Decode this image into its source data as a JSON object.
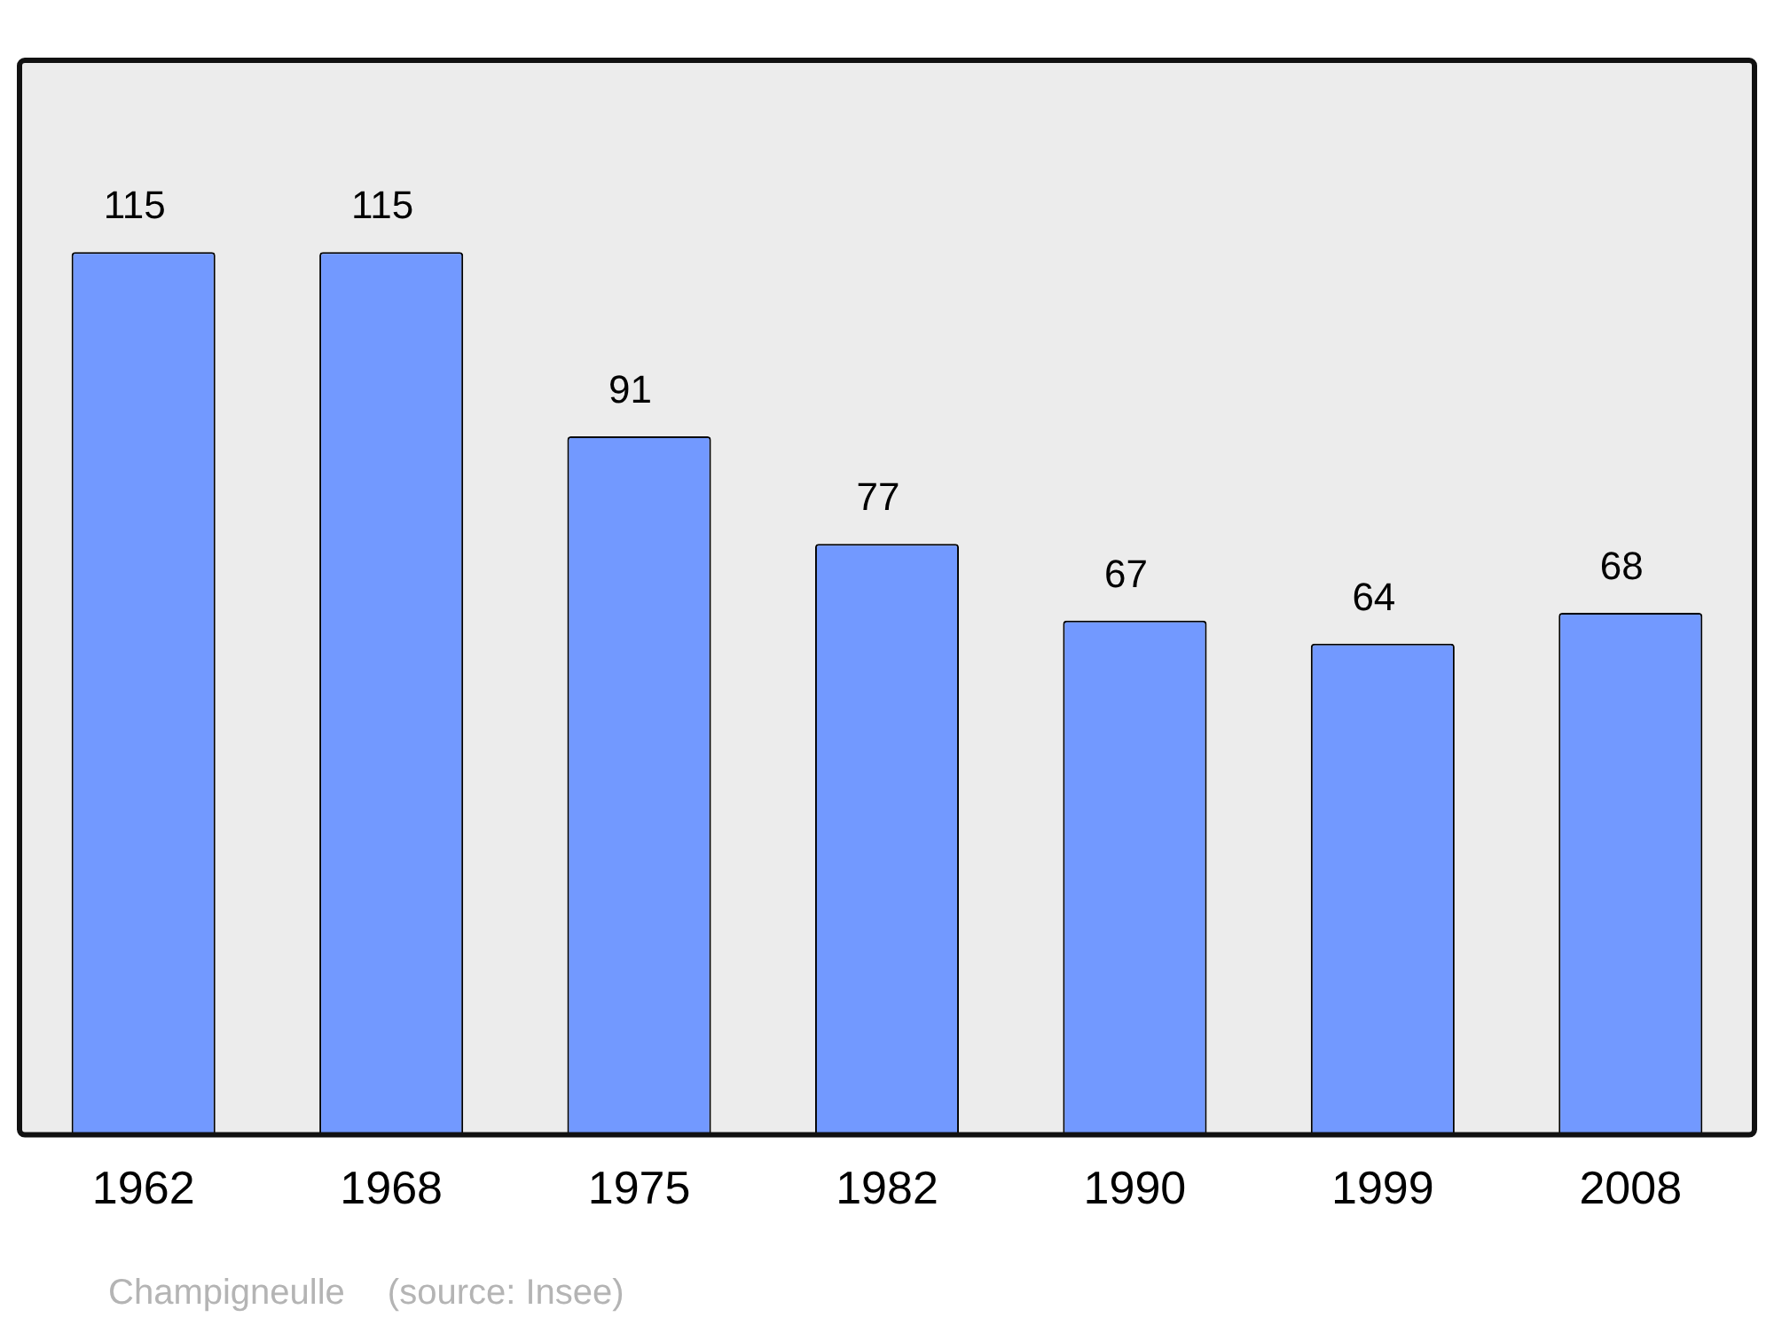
{
  "chart_data": {
    "type": "bar",
    "categories": [
      "1962",
      "1968",
      "1975",
      "1982",
      "1990",
      "1999",
      "2008"
    ],
    "values": [
      115,
      115,
      91,
      77,
      67,
      64,
      68
    ],
    "color": "#7299ff",
    "data_labels": true,
    "grid": false,
    "legend": false,
    "tick_labels": "x",
    "annotations": [
      "Champigneulle",
      "(source: Insee)"
    ]
  }
}
